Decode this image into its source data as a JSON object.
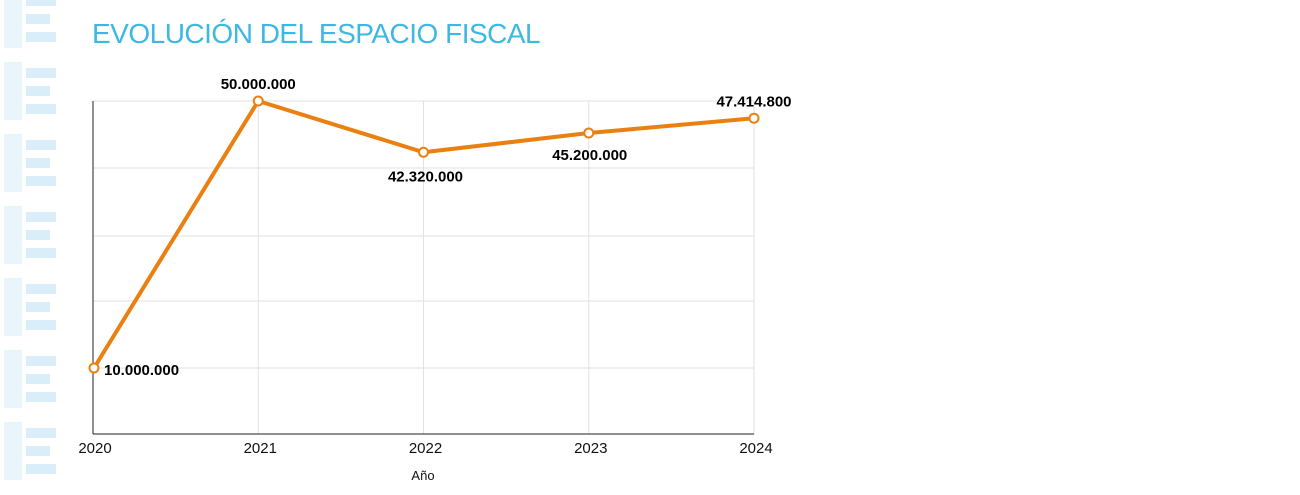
{
  "colors": {
    "title": "#3db8e3",
    "line": "#ea8011",
    "marker_fill": "#ffffff",
    "grid": "#e2e2e2",
    "axis": "#222222",
    "brand_light": "#d9eef8",
    "brand_lighter": "#e8f5fb"
  },
  "brand_strip": {
    "icon": "repeating-logo-pattern"
  },
  "chart_data": {
    "type": "line",
    "title": "EVOLUCIÓN DEL ESPACIO FISCAL",
    "xlabel": "Año",
    "ylabel": "",
    "categories": [
      "2020",
      "2021",
      "2022",
      "2023",
      "2024"
    ],
    "series": [
      {
        "values": [
          10000000,
          50000000,
          42320000,
          45200000,
          47414800
        ],
        "data_labels": [
          "10.000.000",
          "50.000.000",
          "42.320.000",
          "45.200.000",
          "47.414.800"
        ]
      }
    ],
    "ylim": [
      0,
      50000000
    ],
    "grid": true,
    "legend": "none"
  }
}
